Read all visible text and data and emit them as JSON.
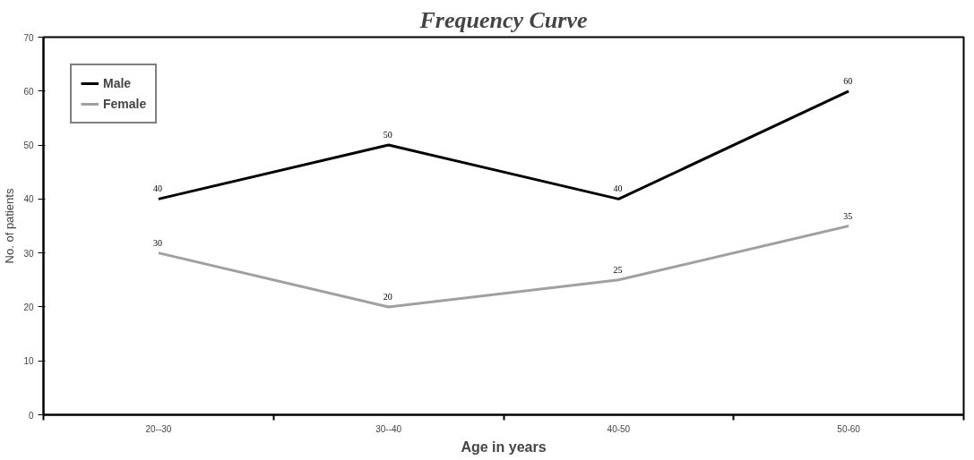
{
  "chart_data": {
    "type": "line",
    "title": "Frequency Curve",
    "xlabel": "Age in years",
    "ylabel": "No. of patients",
    "categories": [
      "20--30",
      "30--40",
      "40-50",
      "50-60"
    ],
    "series": [
      {
        "name": "Male",
        "color": "#000000",
        "values": [
          40,
          50,
          40,
          60
        ]
      },
      {
        "name": "Female",
        "color": "#a0a0a0",
        "values": [
          30,
          20,
          25,
          35
        ]
      }
    ],
    "ylim": [
      0,
      70
    ],
    "yticks": [
      0,
      10,
      20,
      30,
      40,
      50,
      60,
      70
    ],
    "grid": false,
    "legend": "top left",
    "data_labels": true,
    "marker": "none",
    "line_style": "solid"
  }
}
